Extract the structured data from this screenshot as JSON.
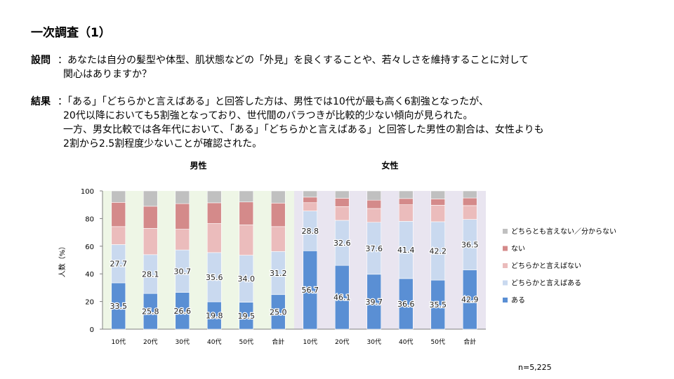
{
  "title": "一次調査（1）",
  "question": {
    "label": "設問",
    "lines": [
      "：あなたは自分の髪型や体型、肌状態などの「外見」を良くすることや、若々しさを維持することに対して",
      "関心はありますか？"
    ]
  },
  "result": {
    "label": "結果",
    "lines": [
      "：「ある」「どちらかと言えばある」と回答した方は、男性では10代が最も高く6割強となったが、",
      "20代以降においても5割強となっており、世代間のバラつきが比較的少ない傾向が見られた。",
      "一方、男女比較では各年代において、「ある」「どちらかと言えばある」と回答した男性の割合は、女性よりも",
      "2割から2.5割程度少ないことが確認された。"
    ]
  },
  "sample_size": "n=5,225",
  "colors": {
    "male_bg": "#eef6e6",
    "female_bg": "#e9e5f0",
    "aru": "#5a8fd4",
    "dochira_aru": "#c9d9ef",
    "dochira_nai": "#ebbcbc",
    "nai": "#d48a8a",
    "neither": "#c0c0c0"
  },
  "chart_data": {
    "type": "bar",
    "stacked": true,
    "ylabel": "人数（%）",
    "ylim": [
      0,
      100
    ],
    "yticks": [
      0,
      20,
      40,
      60,
      80,
      100
    ],
    "groups": [
      {
        "name": "男性",
        "categories": [
          "10代",
          "20代",
          "30代",
          "40代",
          "50代",
          "合計"
        ]
      },
      {
        "name": "女性",
        "categories": [
          "10代",
          "20代",
          "30代",
          "40代",
          "50代",
          "合計"
        ]
      }
    ],
    "categories": [
      "10代",
      "20代",
      "30代",
      "40代",
      "50代",
      "合計",
      "10代",
      "20代",
      "30代",
      "40代",
      "50代",
      "合計"
    ],
    "series": [
      {
        "name": "ある",
        "values": [
          33.5,
          25.8,
          26.6,
          19.8,
          19.5,
          25.0,
          56.7,
          46.1,
          39.7,
          36.6,
          35.5,
          42.9
        ],
        "labeled": true
      },
      {
        "name": "どちらかと言えばある",
        "values": [
          27.7,
          28.1,
          30.7,
          35.6,
          34.0,
          31.2,
          28.8,
          32.6,
          37.6,
          41.4,
          42.2,
          36.5
        ],
        "labeled": true
      },
      {
        "name": "どちらかと言えばない",
        "values": [
          13.0,
          19.0,
          15.0,
          21.0,
          22.0,
          18.0,
          6.0,
          10.0,
          10.0,
          12.0,
          12.0,
          10.0
        ],
        "labeled": false
      },
      {
        "name": "ない",
        "values": [
          17.5,
          16.0,
          18.5,
          15.0,
          16.5,
          17.0,
          4.0,
          6.0,
          6.0,
          4.5,
          4.5,
          5.5
        ],
        "labeled": false
      },
      {
        "name": "どちらとも言えない／分からない",
        "values": [
          8.3,
          11.1,
          9.2,
          8.6,
          8.0,
          8.8,
          4.5,
          5.3,
          6.7,
          5.5,
          5.8,
          5.1
        ],
        "labeled": false
      }
    ],
    "legend_order": [
      "どちらとも言えない／分からない",
      "ない",
      "どちらかと言えばない",
      "どちらかと言えばある",
      "ある"
    ]
  }
}
